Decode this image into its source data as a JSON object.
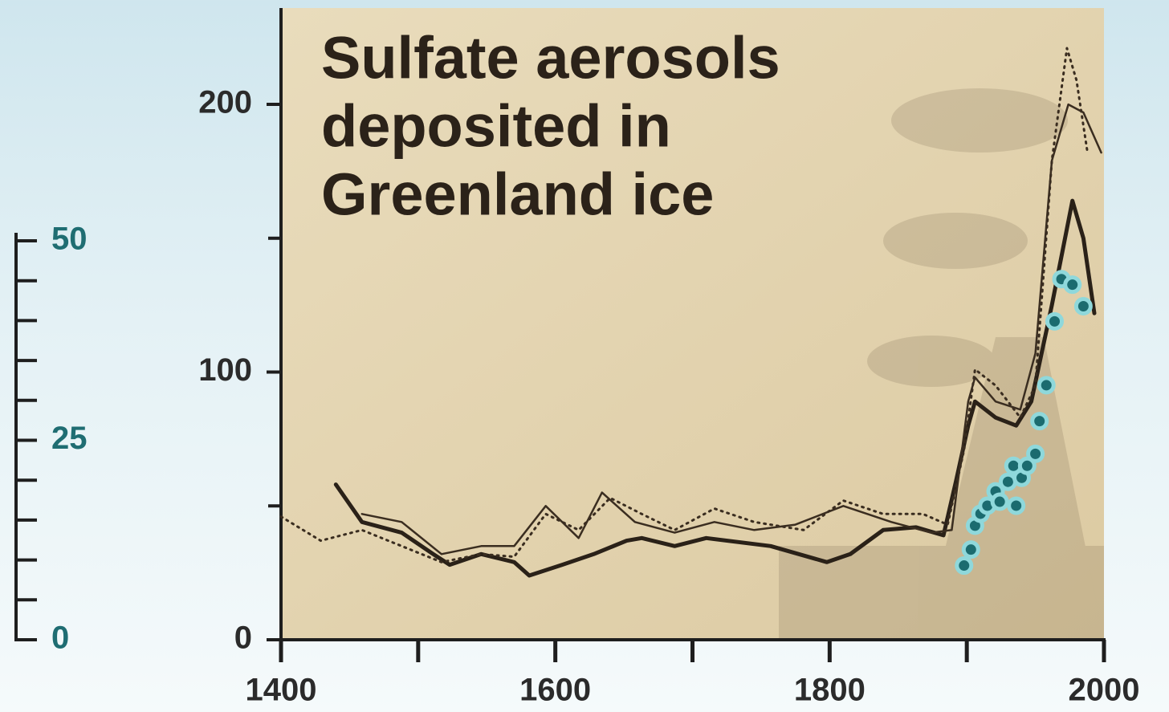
{
  "chart_data": {
    "type": "line",
    "title": [
      "Sulfate aerosols",
      "deposited in",
      "Greenland ice"
    ],
    "xlim": [
      1400,
      2000
    ],
    "xticks": [
      1400,
      1600,
      1800,
      2000
    ],
    "xminorticks": [
      1500,
      1700,
      1900
    ],
    "ylim": [
      0,
      236
    ],
    "yticks": [
      0,
      100,
      200
    ],
    "yminorticks": [
      50,
      150
    ],
    "y2lim": [
      0,
      50
    ],
    "y2ticks": [
      0,
      25,
      50
    ],
    "y2minorticks": [
      5,
      10,
      15,
      20,
      30,
      35,
      40,
      45
    ],
    "series": [
      {
        "style": "solid",
        "color": "#2a2118",
        "width": 5,
        "x": [
          1440,
          1459,
          1488,
          1511,
          1523,
          1546,
          1570,
          1581,
          1605,
          1628,
          1652,
          1663,
          1687,
          1710,
          1757,
          1798,
          1815,
          1839,
          1863,
          1883,
          1892,
          1901,
          1906,
          1921,
          1936,
          1947,
          1962,
          1977,
          1985,
          1993
        ],
        "values": [
          58,
          44,
          40,
          32,
          28,
          32,
          29,
          24,
          28,
          32,
          37,
          38,
          35,
          38,
          35,
          29,
          32,
          41,
          42,
          39,
          59,
          80,
          89,
          83,
          80,
          89,
          125,
          164,
          150,
          122
        ]
      },
      {
        "style": "dotted",
        "color": "#3a2d20",
        "width": 3,
        "x": [
          1400,
          1429,
          1459,
          1488,
          1517,
          1546,
          1570,
          1593,
          1617,
          1640,
          1663,
          1687,
          1716,
          1745,
          1781,
          1810,
          1839,
          1868,
          1886,
          1898,
          1906,
          1921,
          1939,
          1950,
          1962,
          1973,
          1980,
          1988
        ],
        "values": [
          46,
          37,
          41,
          35,
          29,
          32,
          31,
          47,
          41,
          53,
          47,
          41,
          49,
          44,
          41,
          52,
          47,
          47,
          43,
          71,
          101,
          95,
          83,
          95,
          179,
          221,
          209,
          182
        ]
      },
      {
        "style": "solid",
        "color": "#3a2d20",
        "width": 2.5,
        "x": [
          1459,
          1488,
          1517,
          1546,
          1570,
          1593,
          1617,
          1634,
          1658,
          1687,
          1716,
          1745,
          1775,
          1810,
          1845,
          1874,
          1889,
          1901,
          1906,
          1921,
          1939,
          1950,
          1962,
          1974,
          1985,
          1998
        ],
        "values": [
          47,
          44,
          32,
          35,
          35,
          50,
          38,
          55,
          44,
          40,
          44,
          41,
          43,
          50,
          44,
          40,
          41,
          89,
          98,
          89,
          86,
          107,
          179,
          200,
          197,
          182
        ]
      },
      {
        "type": "scatter",
        "axis": "y2",
        "color": "#1b6b6f",
        "edge": "#8fd8db",
        "x": [
          1898,
          1903,
          1906,
          1910,
          1915,
          1921,
          1924,
          1930,
          1934,
          1936,
          1940,
          1944,
          1950,
          1953,
          1958,
          1964,
          1969,
          1977,
          1985
        ],
        "values": [
          9.3,
          11.3,
          14.3,
          15.8,
          16.8,
          18.6,
          17.3,
          19.8,
          21.8,
          16.8,
          20.3,
          21.8,
          23.3,
          27.4,
          31.9,
          39.9,
          45.2,
          44.5,
          41.8
        ]
      }
    ]
  }
}
